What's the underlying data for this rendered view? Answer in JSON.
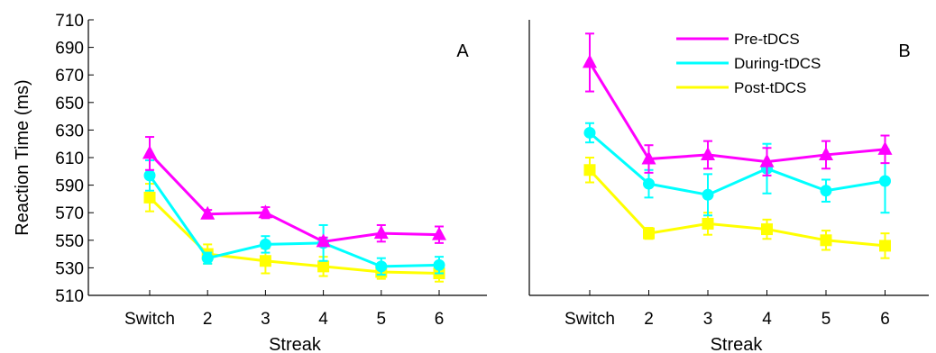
{
  "chart_data": [
    {
      "type": "line",
      "panel_label": "A",
      "xlabel": "Streak",
      "ylabel": "Reaction Time (ms)",
      "categories": [
        "Switch",
        "2",
        "3",
        "4",
        "5",
        "6"
      ],
      "ylim": [
        510,
        710
      ],
      "yticks": [
        510,
        530,
        550,
        570,
        590,
        610,
        630,
        650,
        670,
        690,
        710
      ],
      "grid": false,
      "series": [
        {
          "name": "Pre-tDCS",
          "color": "#ff00ff",
          "marker": "triangle",
          "values": [
            613,
            569,
            570,
            549,
            555,
            554
          ],
          "errors": [
            12,
            3,
            4,
            3,
            6,
            6
          ]
        },
        {
          "name": "During-tDCS",
          "color": "#00ffff",
          "marker": "circle",
          "values": [
            597,
            537,
            547,
            548,
            531,
            532
          ],
          "errors": [
            11,
            4,
            6,
            13,
            6,
            6
          ]
        },
        {
          "name": "Post-tDCS",
          "color": "#ffff00",
          "marker": "square",
          "values": [
            581,
            540,
            535,
            531,
            527,
            526
          ],
          "errors": [
            10,
            7,
            9,
            7,
            5,
            6
          ]
        }
      ]
    },
    {
      "type": "line",
      "panel_label": "B",
      "xlabel": "Streak",
      "ylabel": "",
      "categories": [
        "Switch",
        "2",
        "3",
        "4",
        "5",
        "6"
      ],
      "ylim": [
        510,
        710
      ],
      "grid": false,
      "legend_position": "top-right",
      "series": [
        {
          "name": "Pre-tDCS",
          "color": "#ff00ff",
          "marker": "triangle",
          "values": [
            679,
            609,
            612,
            607,
            612,
            616
          ],
          "errors": [
            21,
            10,
            10,
            10,
            10,
            10
          ]
        },
        {
          "name": "During-tDCS",
          "color": "#00ffff",
          "marker": "circle",
          "values": [
            628,
            591,
            583,
            602,
            586,
            593
          ],
          "errors": [
            7,
            10,
            15,
            18,
            8,
            23
          ]
        },
        {
          "name": "Post-tDCS",
          "color": "#ffff00",
          "marker": "square",
          "values": [
            601,
            555,
            562,
            558,
            550,
            546
          ],
          "errors": [
            9,
            4,
            8,
            7,
            7,
            9
          ]
        }
      ]
    }
  ]
}
